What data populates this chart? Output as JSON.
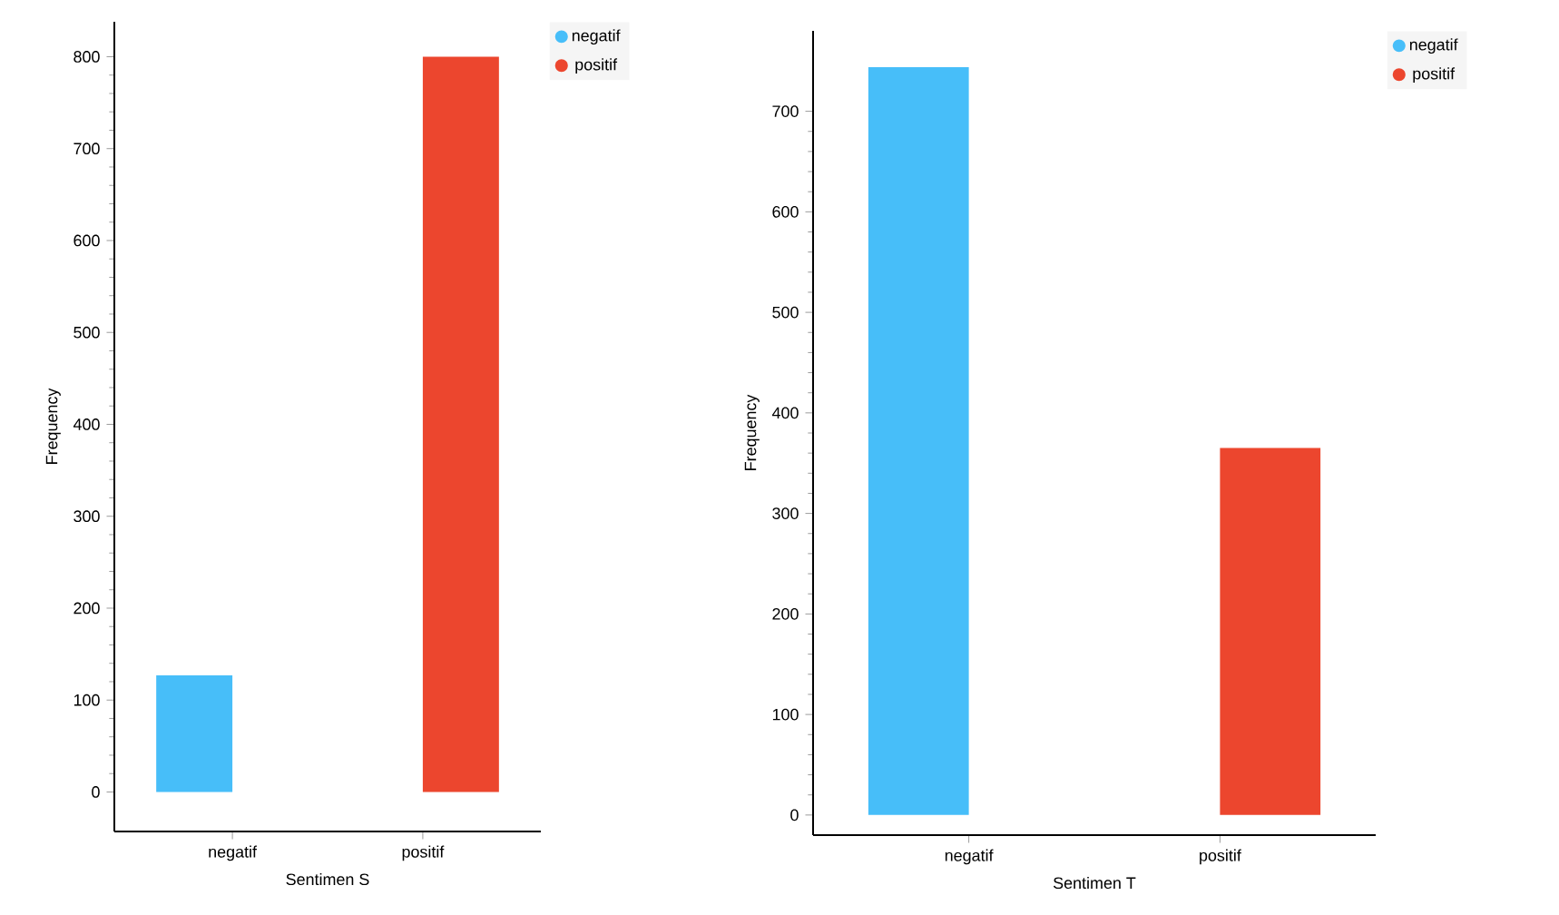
{
  "chart_data": [
    {
      "type": "bar",
      "categories": [
        "negatif",
        "positif"
      ],
      "xlabel": "Sentimen S",
      "ylabel": "Frequency",
      "ylim": [
        -43,
        838
      ],
      "yticks": [
        0,
        100,
        200,
        300,
        400,
        500,
        600,
        700,
        800
      ],
      "legend": "top right",
      "series": [
        {
          "name": "negatif",
          "color": "#47bef9",
          "values": [
            127,
            null
          ]
        },
        {
          "name": "positif",
          "color": "#ec462e",
          "values": [
            null,
            800
          ]
        }
      ]
    },
    {
      "type": "bar",
      "categories": [
        "negatif",
        "positif"
      ],
      "xlabel": "Sentimen T",
      "ylabel": "Frequency",
      "ylim": [
        -20,
        780
      ],
      "yticks": [
        0,
        100,
        200,
        300,
        400,
        500,
        600,
        700
      ],
      "legend": "top right",
      "series": [
        {
          "name": "negatif",
          "color": "#47bef9",
          "values": [
            744,
            null
          ]
        },
        {
          "name": "positif",
          "color": "#ec462e",
          "values": [
            null,
            365
          ]
        }
      ]
    }
  ]
}
